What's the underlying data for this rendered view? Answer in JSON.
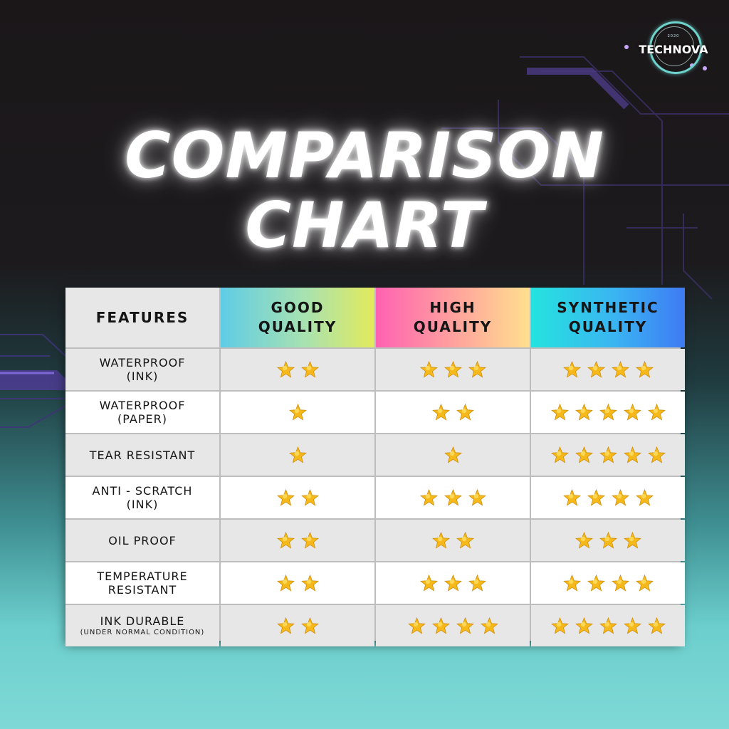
{
  "brand": {
    "name": "TECHNOVA",
    "year": "2020"
  },
  "title": {
    "line1": "COMPARISON",
    "line2": "CHART"
  },
  "table": {
    "headers": {
      "features": "FEATURES",
      "good": [
        "GOOD",
        "QUALITY"
      ],
      "high": [
        "HIGH",
        "QUALITY"
      ],
      "synthetic": [
        "SYNTHETIC",
        "QUALITY"
      ]
    },
    "rows": [
      {
        "feature": [
          "WATERPROOF",
          "(INK)"
        ],
        "sub": "",
        "ratings": [
          2,
          3,
          4
        ]
      },
      {
        "feature": [
          "WATERPROOF",
          "(PAPER)"
        ],
        "sub": "",
        "ratings": [
          1,
          2,
          5
        ]
      },
      {
        "feature": [
          "TEAR RESISTANT"
        ],
        "sub": "",
        "ratings": [
          1,
          1,
          5
        ]
      },
      {
        "feature": [
          "ANTI - SCRATCH",
          "(INK)"
        ],
        "sub": "",
        "ratings": [
          2,
          3,
          4
        ]
      },
      {
        "feature": [
          "OIL PROOF"
        ],
        "sub": "",
        "ratings": [
          2,
          2,
          3
        ]
      },
      {
        "feature": [
          "TEMPERATURE",
          "RESISTANT"
        ],
        "sub": "",
        "ratings": [
          2,
          3,
          4
        ]
      },
      {
        "feature": [
          "INK DURABLE"
        ],
        "sub": "(UNDER NORMAL CONDITION)",
        "ratings": [
          2,
          4,
          5
        ]
      }
    ],
    "colors": {
      "star_fill": "#f6b91c",
      "star_highlight": "#ffe36a"
    },
    "icons": {
      "rating": "star-icon"
    }
  }
}
